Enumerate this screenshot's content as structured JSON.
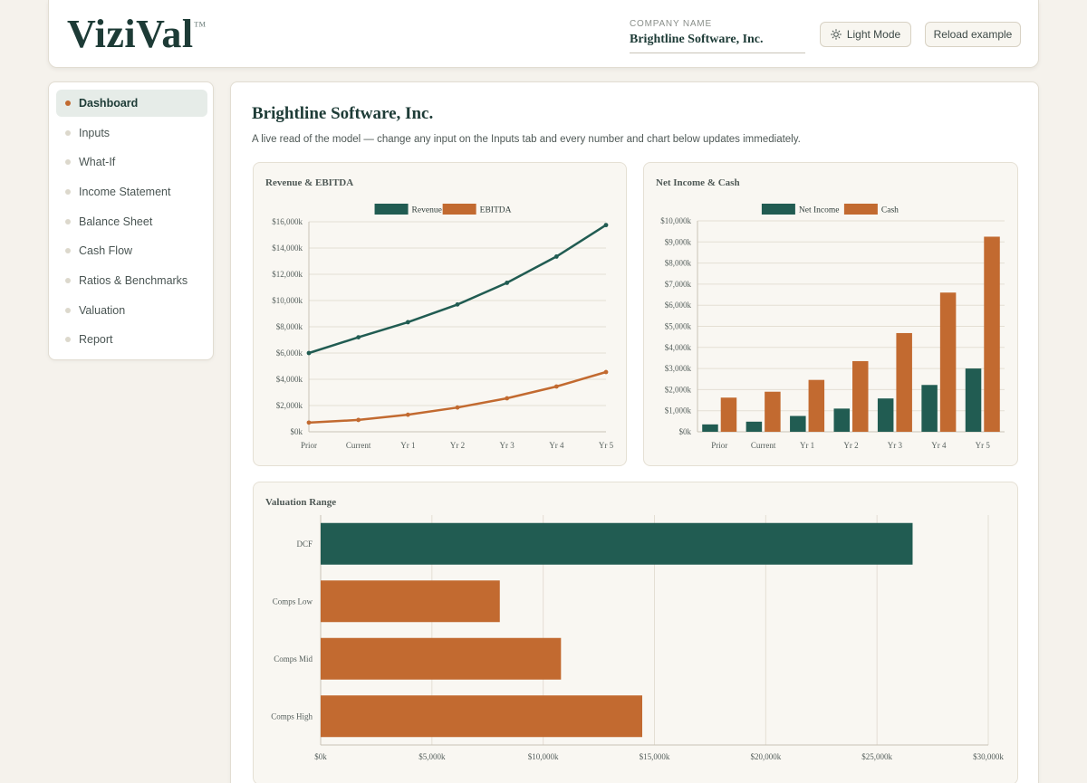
{
  "header": {
    "logo": "ViziVal",
    "logo_tm": "™",
    "company_label": "COMPANY NAME",
    "company_value": "Brightline Software, Inc.",
    "light_mode_label": "Light Mode",
    "reload_label": "Reload example"
  },
  "sidebar": {
    "items": [
      {
        "label": "Dashboard",
        "active": true
      },
      {
        "label": "Inputs"
      },
      {
        "label": "What-If"
      },
      {
        "label": "Income Statement"
      },
      {
        "label": "Balance Sheet"
      },
      {
        "label": "Cash Flow"
      },
      {
        "label": "Ratios & Benchmarks"
      },
      {
        "label": "Valuation"
      },
      {
        "label": "Report"
      }
    ]
  },
  "main": {
    "title": "Brightline Software, Inc.",
    "subtitle": "A live read of the model — change any input on the Inputs tab and every number and chart below updates immediately."
  },
  "colors": {
    "primary": "#215c52",
    "accent": "#c26a30"
  },
  "chart_data": [
    {
      "type": "line",
      "title": "Revenue & EBITDA",
      "categories": [
        "Prior",
        "Current",
        "Yr 1",
        "Yr 2",
        "Yr 3",
        "Yr 4",
        "Yr 5"
      ],
      "series": [
        {
          "name": "Revenue",
          "values": [
            6000,
            7200,
            8350,
            9700,
            11350,
            13350,
            15750
          ]
        },
        {
          "name": "EBITDA",
          "values": [
            700,
            900,
            1300,
            1850,
            2550,
            3450,
            4550
          ]
        }
      ],
      "ylim": [
        0,
        16000
      ],
      "yticks": [
        "$0k",
        "$2,000k",
        "$4,000k",
        "$6,000k",
        "$8,000k",
        "$10,000k",
        "$12,000k",
        "$14,000k",
        "$16,000k"
      ],
      "grid": true,
      "legend": "top-center"
    },
    {
      "type": "bar",
      "title": "Net Income & Cash",
      "categories": [
        "Prior",
        "Current",
        "Yr 1",
        "Yr 2",
        "Yr 3",
        "Yr 4",
        "Yr 5"
      ],
      "series": [
        {
          "name": "Net Income",
          "values": [
            350,
            480,
            750,
            1100,
            1580,
            2220,
            3000
          ]
        },
        {
          "name": "Cash",
          "values": [
            1620,
            1900,
            2460,
            3350,
            4680,
            6600,
            9250
          ]
        }
      ],
      "ylim": [
        0,
        10000
      ],
      "yticks": [
        "$0k",
        "$1,000k",
        "$2,000k",
        "$3,000k",
        "$4,000k",
        "$5,000k",
        "$6,000k",
        "$7,000k",
        "$8,000k",
        "$9,000k",
        "$10,000k"
      ],
      "grid": true,
      "legend": "top-center"
    },
    {
      "type": "bar",
      "orientation": "horizontal",
      "title": "Valuation Range",
      "categories": [
        "DCF",
        "Comps Low",
        "Comps Mid",
        "Comps High"
      ],
      "values": [
        26600,
        8050,
        10800,
        14450
      ],
      "xlim": [
        0,
        30000
      ],
      "xticks": [
        "$0k",
        "$5,000k",
        "$10,000k",
        "$15,000k",
        "$20,000k",
        "$25,000k",
        "$30,000k"
      ],
      "grid": true
    }
  ]
}
